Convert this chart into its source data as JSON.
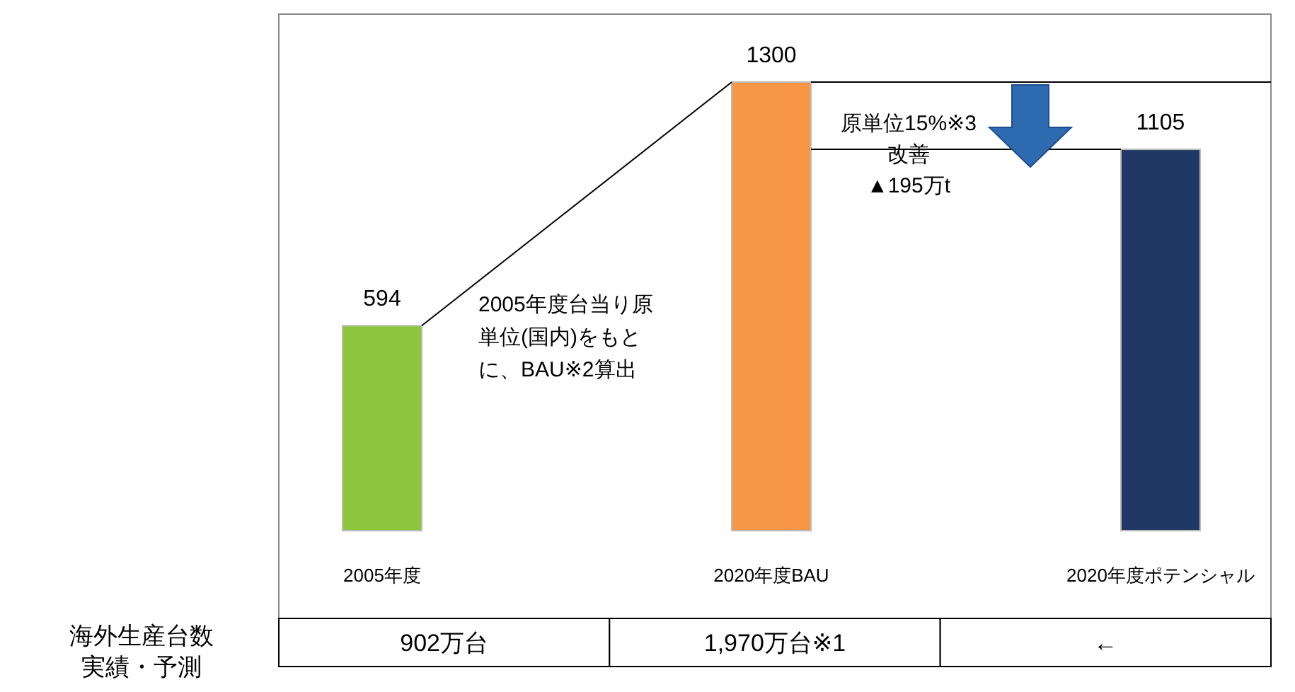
{
  "chart_data": {
    "type": "bar",
    "categories": [
      "2005年度",
      "2020年度BAU",
      "2020年度ポテンシャル"
    ],
    "values": [
      594,
      1300,
      1105
    ],
    "colors": [
      "#8cc63e",
      "#f79646",
      "#1f3864"
    ],
    "data_labels": true,
    "annotations": [
      "2005年度台当り原単位(国内)をもとに、BAU※2算出",
      "原単位15%※3改善",
      "▲195万t",
      "海外生産台数実績・予測",
      "902万台",
      "1,970万台※1",
      "←"
    ]
  }
}
